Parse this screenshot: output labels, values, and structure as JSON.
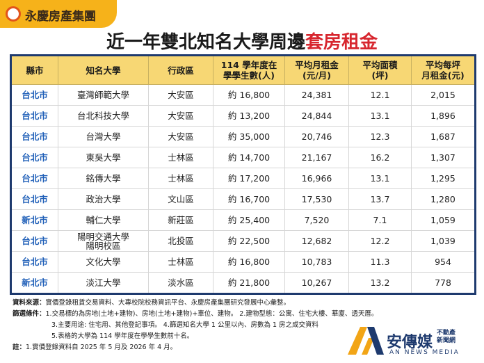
{
  "brand": "永慶房產集團",
  "title": {
    "main": "近一年雙北知名大學周邊",
    "highlight": "套房租金"
  },
  "table": {
    "header": [
      "縣市",
      "知名大學",
      "行政區",
      "114 學年度在\n學學生數(人)",
      "平均月租金\n(元/月)",
      "平均面積\n(坪)",
      "平均每坪\n月租金(元)"
    ],
    "rows": [
      [
        "台北市",
        "臺灣師範大學",
        "大安區",
        "約 16,800",
        "24,381",
        "12.1",
        "2,015"
      ],
      [
        "台北市",
        "台北科技大學",
        "大安區",
        "約 13,200",
        "24,844",
        "13.1",
        "1,896"
      ],
      [
        "台北市",
        "台灣大學",
        "大安區",
        "約 35,000",
        "20,746",
        "12.3",
        "1,687"
      ],
      [
        "台北市",
        "東吳大學",
        "士林區",
        "約 14,700",
        "21,167",
        "16.2",
        "1,307"
      ],
      [
        "台北市",
        "銘傳大學",
        "士林區",
        "約 17,200",
        "16,966",
        "13.1",
        "1,295"
      ],
      [
        "台北市",
        "政治大學",
        "文山區",
        "約 16,700",
        "17,530",
        "13.7",
        "1,280"
      ],
      [
        "新北市",
        "輔仁大學",
        "新莊區",
        "約 25,400",
        "7,520",
        "7.1",
        "1,059"
      ],
      [
        "台北市",
        "陽明交通大學\n陽明校區",
        "北投區",
        "約 22,500",
        "12,682",
        "12.2",
        "1,039"
      ],
      [
        "台北市",
        "文化大學",
        "士林區",
        "約 16,800",
        "10,783",
        "11.3",
        "954"
      ],
      [
        "新北市",
        "淡江大學",
        "淡水區",
        "約 21,800",
        "10,267",
        "13.2",
        "778"
      ]
    ]
  },
  "notes": [
    {
      "label": "資料來源：",
      "lines": [
        "實價登錄租賃交易資料、大專校院校務資訊平台、永慶房產集團研究發展中心彙整。"
      ]
    },
    {
      "label": "篩選條件：",
      "lines": [
        "1.交易標的為房地(土地+建物)、房地(土地+建物)+車位、建物。 2.建物型態：公寓、住宅大樓、華廈、透天厝。",
        "3.主要用途: 住宅用、其他登記事項。 4.篩選知名大學 1 公里以內、房數為 1 房之成交資料",
        "5.表格的大學為 114 學年度在學學生數前十名。"
      ]
    },
    {
      "label": "註：",
      "lines": [
        "1.實價登錄資料自 2025 年 5 月及 2026 年 4 月。"
      ]
    }
  ],
  "media": {
    "name": "安傳媒",
    "tag": "不動產\n新聞網",
    "english": "AN NEWS MEDIA"
  }
}
